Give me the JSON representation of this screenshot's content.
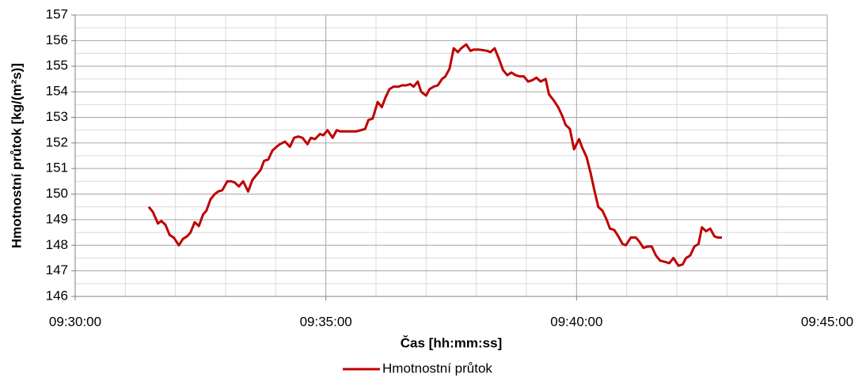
{
  "chart_data": {
    "type": "line",
    "xlabel": "Čas [hh:mm:ss]",
    "ylabel": "Hmotnostní průtok [kg/(m²s)]",
    "xlim": [
      "09:30:00",
      "09:45:00"
    ],
    "xticks": [
      "09:30:00",
      "09:35:00",
      "09:40:00",
      "09:45:00"
    ],
    "ylim": [
      146,
      157
    ],
    "yticks": [
      146,
      147,
      148,
      149,
      150,
      151,
      152,
      153,
      154,
      155,
      156,
      157
    ],
    "grid": true,
    "minor_grid": true,
    "legend": "bottom",
    "x": [
      "09:31:28",
      "09:31:33",
      "09:31:39",
      "09:31:43",
      "09:31:48",
      "09:31:53",
      "09:31:58",
      "09:32:04",
      "09:32:09",
      "09:32:14",
      "09:32:18",
      "09:32:23",
      "09:32:28",
      "09:32:33",
      "09:32:37",
      "09:32:42",
      "09:32:47",
      "09:32:51",
      "09:32:56",
      "09:33:02",
      "09:33:07",
      "09:33:11",
      "09:33:16",
      "09:33:21",
      "09:33:27",
      "09:33:32",
      "09:33:37",
      "09:33:42",
      "09:33:46",
      "09:33:51",
      "09:33:56",
      "09:34:01",
      "09:34:05",
      "09:34:11",
      "09:34:17",
      "09:34:22",
      "09:34:27",
      "09:34:32",
      "09:34:38",
      "09:34:42",
      "09:34:47",
      "09:34:53",
      "09:34:57",
      "09:35:02",
      "09:35:08",
      "09:35:13",
      "09:35:17",
      "09:35:27",
      "09:35:36",
      "09:35:42",
      "09:35:47",
      "09:35:51",
      "09:35:56",
      "09:36:02",
      "09:36:07",
      "09:36:11",
      "09:36:16",
      "09:36:21",
      "09:36:27",
      "09:36:31",
      "09:36:36",
      "09:36:41",
      "09:36:45",
      "09:36:50",
      "09:36:54",
      "09:37:00",
      "09:37:04",
      "09:37:09",
      "09:37:14",
      "09:37:19",
      "09:37:23",
      "09:37:28",
      "09:37:33",
      "09:37:38",
      "09:37:42",
      "09:37:48",
      "09:37:53",
      "09:37:57",
      "09:38:03",
      "09:38:13",
      "09:38:17",
      "09:38:22",
      "09:38:27",
      "09:38:32",
      "09:38:37",
      "09:38:42",
      "09:38:47",
      "09:38:52",
      "09:38:57",
      "09:39:02",
      "09:39:07",
      "09:39:12",
      "09:39:17",
      "09:39:23",
      "09:39:27",
      "09:39:33",
      "09:39:38",
      "09:39:43",
      "09:39:47",
      "09:39:52",
      "09:39:57",
      "09:40:03",
      "09:40:07",
      "09:40:12",
      "09:40:17",
      "09:40:21",
      "09:40:26",
      "09:40:31",
      "09:40:36",
      "09:40:40",
      "09:40:45",
      "09:40:50",
      "09:40:55",
      "09:40:59",
      "09:41:05",
      "09:41:11",
      "09:41:15",
      "09:41:20",
      "09:41:25",
      "09:41:30",
      "09:41:35",
      "09:41:40",
      "09:41:46",
      "09:41:51",
      "09:41:56",
      "09:42:02",
      "09:42:07",
      "09:42:11",
      "09:42:16",
      "09:42:21",
      "09:42:26",
      "09:42:30",
      "09:42:35",
      "09:42:40",
      "09:42:45",
      "09:42:49",
      "09:42:54"
    ],
    "series": [
      {
        "name": "Hmotnostní průtok",
        "color": "#c00000",
        "values": [
          149.5,
          149.3,
          148.85,
          148.95,
          148.8,
          148.4,
          148.3,
          148.0,
          148.25,
          148.35,
          148.5,
          148.9,
          148.75,
          149.2,
          149.35,
          149.8,
          150.0,
          150.1,
          150.15,
          150.5,
          150.5,
          150.45,
          150.3,
          150.5,
          150.1,
          150.55,
          150.75,
          150.95,
          151.3,
          151.35,
          151.7,
          151.85,
          151.95,
          152.05,
          151.85,
          152.2,
          152.25,
          152.2,
          151.95,
          152.2,
          152.15,
          152.35,
          152.3,
          152.5,
          152.2,
          152.5,
          152.45,
          152.45,
          152.45,
          152.5,
          152.55,
          152.9,
          152.95,
          153.6,
          153.4,
          153.75,
          154.1,
          154.2,
          154.2,
          154.25,
          154.25,
          154.3,
          154.2,
          154.4,
          154.0,
          153.85,
          154.1,
          154.2,
          154.25,
          154.5,
          154.6,
          154.9,
          155.7,
          155.55,
          155.7,
          155.85,
          155.6,
          155.65,
          155.65,
          155.6,
          155.55,
          155.7,
          155.3,
          154.85,
          154.65,
          154.75,
          154.65,
          154.6,
          154.6,
          154.4,
          154.45,
          154.55,
          154.4,
          154.5,
          153.9,
          153.65,
          153.4,
          153.05,
          152.7,
          152.55,
          151.75,
          152.15,
          151.8,
          151.45,
          150.8,
          150.2,
          149.5,
          149.35,
          149.0,
          148.65,
          148.6,
          148.35,
          148.05,
          148.0,
          148.3,
          148.3,
          148.15,
          147.9,
          147.95,
          147.95,
          147.6,
          147.4,
          147.35,
          147.3,
          147.5,
          147.2,
          147.25,
          147.5,
          147.6,
          147.95,
          148.05,
          148.7,
          148.55,
          148.65,
          148.35,
          148.3,
          148.3
        ]
      }
    ]
  }
}
